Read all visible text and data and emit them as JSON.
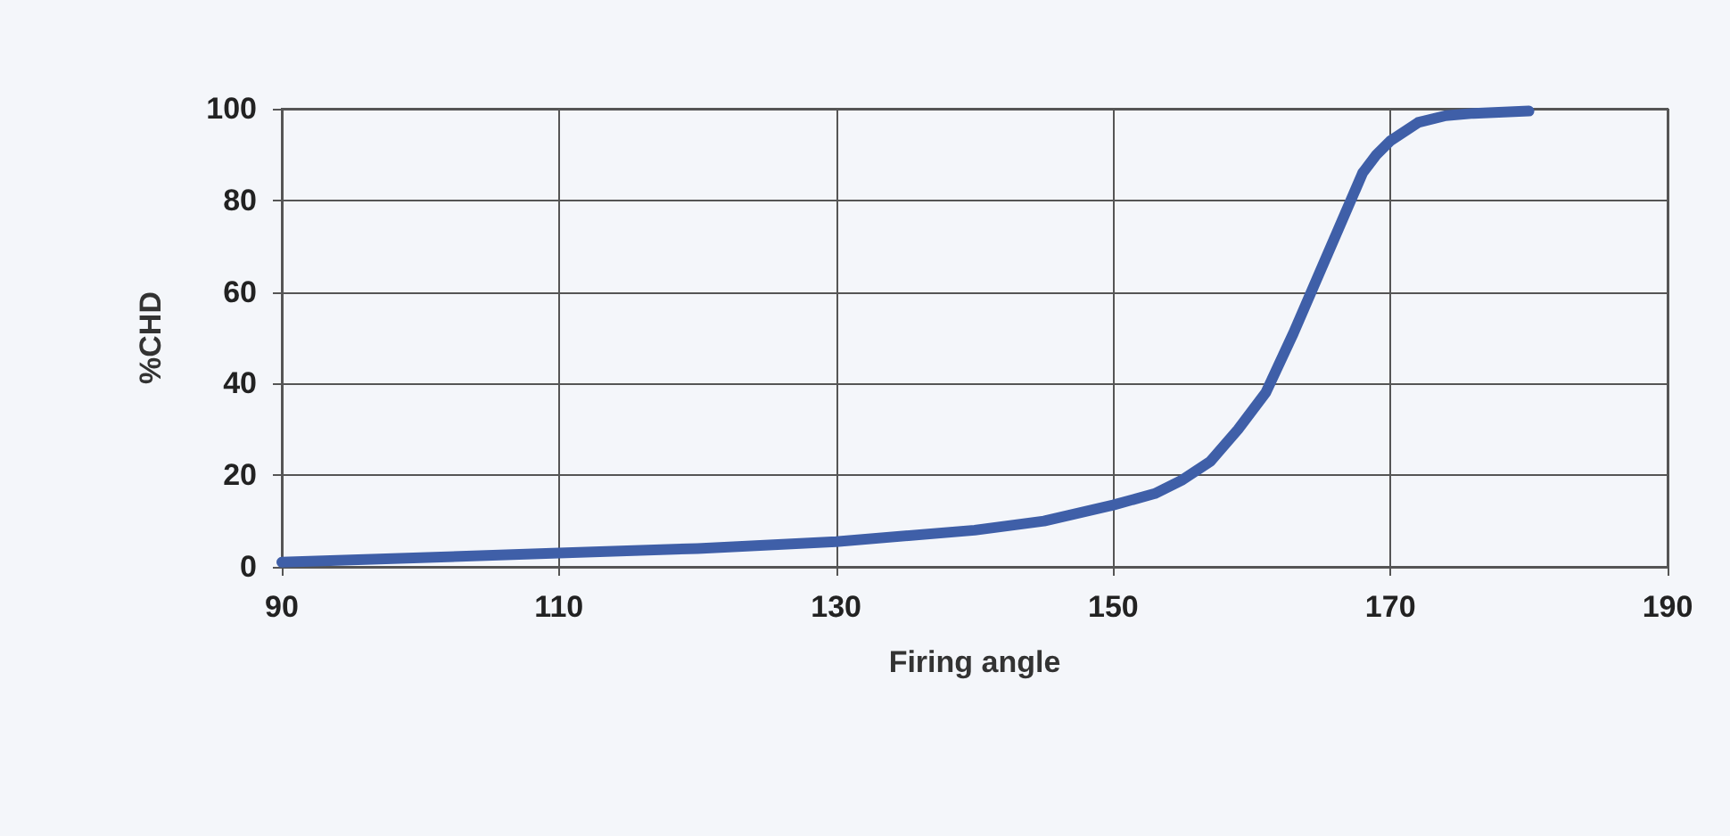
{
  "chart_data": {
    "type": "line",
    "xlabel": "Firing angle",
    "ylabel": "%CHD",
    "x": [
      90,
      100,
      110,
      120,
      130,
      140,
      145,
      150,
      153,
      155,
      157,
      159,
      161,
      163,
      164,
      165,
      167,
      168,
      169,
      170,
      172,
      174,
      176,
      180
    ],
    "series": [
      {
        "color": "#3f5fa8",
        "values": [
          1,
          2,
          3,
          4,
          5.5,
          8,
          10,
          13.5,
          16,
          19,
          23,
          30,
          38,
          51,
          58,
          65,
          79,
          86,
          90,
          93,
          97,
          98.5,
          99,
          99.5
        ]
      }
    ],
    "xlim": [
      90,
      190
    ],
    "xticks": [
      90,
      110,
      130,
      150,
      170,
      190
    ],
    "ylim": [
      0,
      100
    ],
    "yticks": [
      0,
      20,
      40,
      60,
      80,
      100
    ],
    "grid": true,
    "marker": "none",
    "line_style": "solid"
  }
}
